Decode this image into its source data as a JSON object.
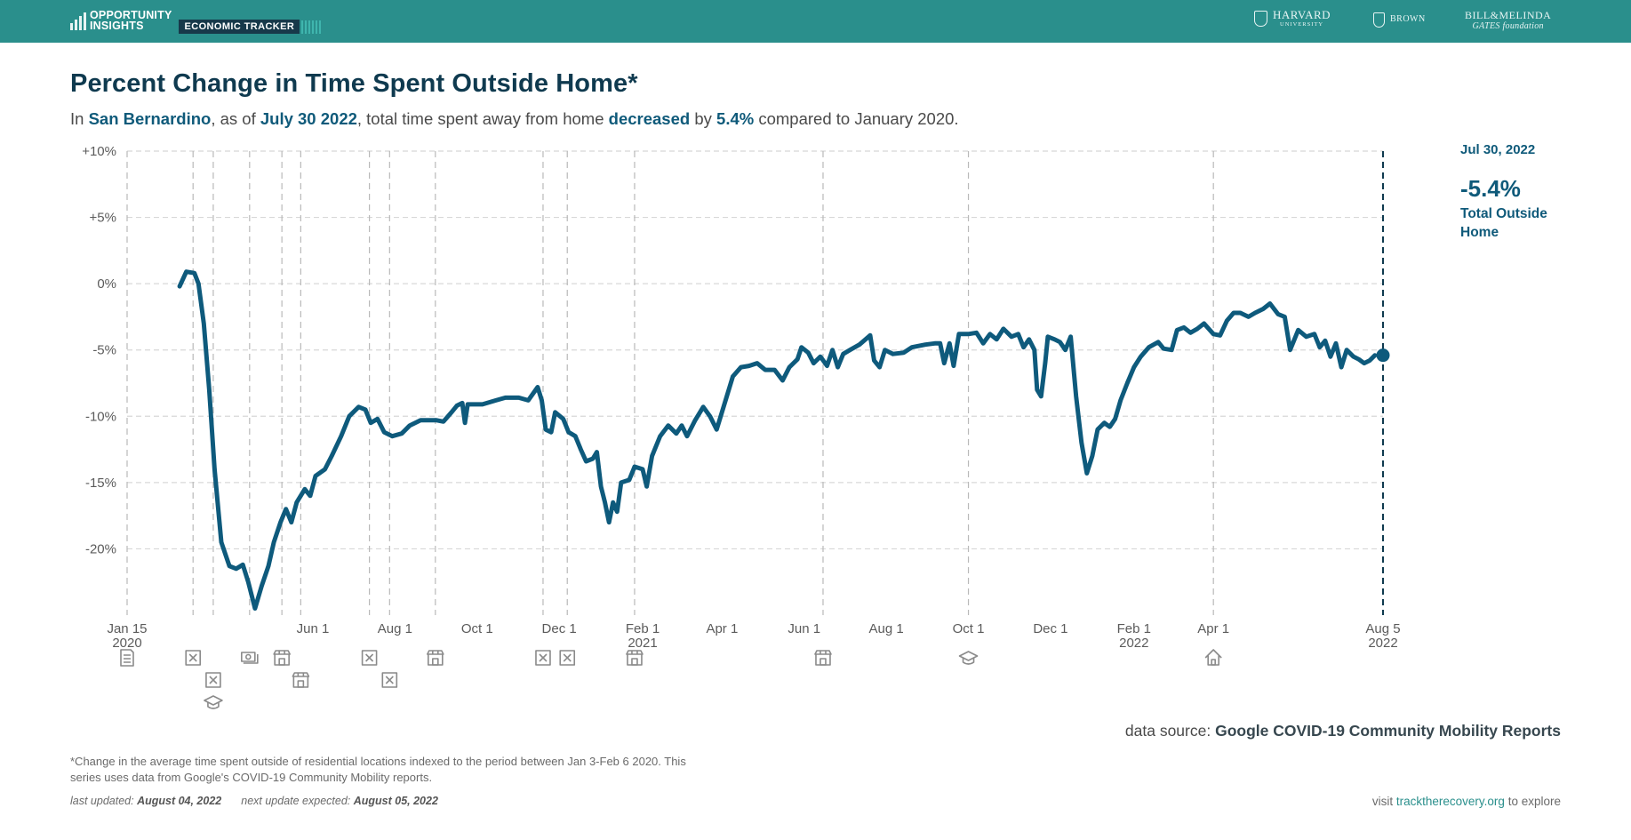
{
  "header": {
    "brand_line1": "OPPORTUNITY",
    "brand_line2": "INSIGHTS",
    "product_tag": "ECONOMIC TRACKER",
    "partners": [
      {
        "name": "HARVARD",
        "sub": "UNIVERSITY"
      },
      {
        "name": "BROWN"
      },
      {
        "name": "BILL&MELINDA",
        "sub": "GATES foundation"
      }
    ]
  },
  "title": "Percent Change in Time Spent Outside Home*",
  "subtitle": {
    "p1": "In ",
    "place": "San Bernardino",
    "p2": ", as of ",
    "date": "July 30 2022",
    "p3": ", total time spent away from home ",
    "direction": "decreased",
    "p4": " by ",
    "amount": "5.4%",
    "p5": " compared to January 2020."
  },
  "readout": {
    "date": "Jul 30, 2022",
    "value": "-5.4%",
    "label": "Total Outside Home"
  },
  "chart_data": {
    "type": "line",
    "ylim": [
      -25,
      10
    ],
    "y_ticks": [
      {
        "value": 10,
        "label": "+10%"
      },
      {
        "value": 5,
        "label": "+5%"
      },
      {
        "value": 0,
        "label": "0%"
      },
      {
        "value": -5,
        "label": "-5%"
      },
      {
        "value": -10,
        "label": "-10%"
      },
      {
        "value": -15,
        "label": "-15%"
      },
      {
        "value": -20,
        "label": "-20%"
      }
    ],
    "x_range": [
      "2020-01-15",
      "2022-08-05"
    ],
    "x_ticks": [
      {
        "date": "2020-01-15",
        "label": "Jan 15",
        "year": "2020"
      },
      {
        "date": "2020-06-01",
        "label": "Jun 1"
      },
      {
        "date": "2020-08-01",
        "label": "Aug 1"
      },
      {
        "date": "2020-10-01",
        "label": "Oct 1"
      },
      {
        "date": "2020-12-01",
        "label": "Dec 1"
      },
      {
        "date": "2021-02-01",
        "label": "Feb 1",
        "year": "2021"
      },
      {
        "date": "2021-04-01",
        "label": "Apr 1"
      },
      {
        "date": "2021-06-01",
        "label": "Jun 1"
      },
      {
        "date": "2021-08-01",
        "label": "Aug 1"
      },
      {
        "date": "2021-10-01",
        "label": "Oct 1"
      },
      {
        "date": "2021-12-01",
        "label": "Dec 1"
      },
      {
        "date": "2022-02-01",
        "label": "Feb 1",
        "year": "2022"
      },
      {
        "date": "2022-04-01",
        "label": "Apr 1"
      },
      {
        "date": "2022-08-05",
        "label": "Aug 5",
        "year": "2022"
      }
    ],
    "grid": "horizontal dashed",
    "series": [
      {
        "color": "#0e5a7c",
        "points": [
          [
            "2020-02-23",
            -0.2
          ],
          [
            "2020-02-28",
            0.9
          ],
          [
            "2020-03-05",
            0.8
          ],
          [
            "2020-03-08",
            0.0
          ],
          [
            "2020-03-12",
            -3.0
          ],
          [
            "2020-03-16",
            -8.0
          ],
          [
            "2020-03-20",
            -14.0
          ],
          [
            "2020-03-25",
            -19.5
          ],
          [
            "2020-03-31",
            -21.3
          ],
          [
            "2020-04-05",
            -21.5
          ],
          [
            "2020-04-10",
            -21.2
          ],
          [
            "2020-04-14",
            -22.5
          ],
          [
            "2020-04-19",
            -24.5
          ],
          [
            "2020-04-24",
            -22.8
          ],
          [
            "2020-04-29",
            -21.3
          ],
          [
            "2020-05-03",
            -19.5
          ],
          [
            "2020-05-08",
            -18.0
          ],
          [
            "2020-05-12",
            -17.0
          ],
          [
            "2020-05-16",
            -18.0
          ],
          [
            "2020-05-20",
            -16.5
          ],
          [
            "2020-05-26",
            -15.5
          ],
          [
            "2020-05-30",
            -16.0
          ],
          [
            "2020-06-03",
            -14.5
          ],
          [
            "2020-06-10",
            -14.0
          ],
          [
            "2020-06-15",
            -13.0
          ],
          [
            "2020-06-22",
            -11.5
          ],
          [
            "2020-06-28",
            -10.0
          ],
          [
            "2020-07-05",
            -9.3
          ],
          [
            "2020-07-10",
            -9.5
          ],
          [
            "2020-07-14",
            -10.5
          ],
          [
            "2020-07-19",
            -10.2
          ],
          [
            "2020-07-24",
            -11.2
          ],
          [
            "2020-07-30",
            -11.5
          ],
          [
            "2020-08-06",
            -11.3
          ],
          [
            "2020-08-12",
            -10.7
          ],
          [
            "2020-08-20",
            -10.3
          ],
          [
            "2020-09-01",
            -10.3
          ],
          [
            "2020-09-06",
            -10.4
          ],
          [
            "2020-09-12",
            -9.7
          ],
          [
            "2020-09-16",
            -9.2
          ],
          [
            "2020-09-20",
            -9.0
          ],
          [
            "2020-09-22",
            -10.5
          ],
          [
            "2020-09-24",
            -9.1
          ],
          [
            "2020-10-05",
            -9.1
          ],
          [
            "2020-10-15",
            -8.8
          ],
          [
            "2020-10-22",
            -8.6
          ],
          [
            "2020-11-01",
            -8.6
          ],
          [
            "2020-11-08",
            -8.8
          ],
          [
            "2020-11-15",
            -7.8
          ],
          [
            "2020-11-18",
            -8.8
          ],
          [
            "2020-11-21",
            -11.0
          ],
          [
            "2020-11-25",
            -11.2
          ],
          [
            "2020-11-28",
            -9.7
          ],
          [
            "2020-12-04",
            -10.2
          ],
          [
            "2020-12-08",
            -11.2
          ],
          [
            "2020-12-13",
            -11.5
          ],
          [
            "2020-12-17",
            -12.5
          ],
          [
            "2020-12-21",
            -13.4
          ],
          [
            "2020-12-26",
            -13.2
          ],
          [
            "2020-12-29",
            -12.7
          ],
          [
            "2021-01-01",
            -15.3
          ],
          [
            "2021-01-04",
            -16.5
          ],
          [
            "2021-01-07",
            -18.0
          ],
          [
            "2021-01-10",
            -16.5
          ],
          [
            "2021-01-13",
            -17.2
          ],
          [
            "2021-01-16",
            -15.0
          ],
          [
            "2021-01-22",
            -14.8
          ],
          [
            "2021-01-26",
            -13.8
          ],
          [
            "2021-02-01",
            -14.0
          ],
          [
            "2021-02-04",
            -15.3
          ],
          [
            "2021-02-08",
            -13.0
          ],
          [
            "2021-02-14",
            -11.5
          ],
          [
            "2021-02-20",
            -10.7
          ],
          [
            "2021-02-26",
            -11.3
          ],
          [
            "2021-03-02",
            -10.7
          ],
          [
            "2021-03-06",
            -11.5
          ],
          [
            "2021-03-12",
            -10.3
          ],
          [
            "2021-03-18",
            -9.3
          ],
          [
            "2021-03-23",
            -10.0
          ],
          [
            "2021-03-28",
            -11.0
          ],
          [
            "2021-04-03",
            -9.0
          ],
          [
            "2021-04-09",
            -7.0
          ],
          [
            "2021-04-15",
            -6.3
          ],
          [
            "2021-04-21",
            -6.2
          ],
          [
            "2021-04-27",
            -6.0
          ],
          [
            "2021-05-03",
            -6.5
          ],
          [
            "2021-05-10",
            -6.5
          ],
          [
            "2021-05-16",
            -7.3
          ],
          [
            "2021-05-21",
            -6.3
          ],
          [
            "2021-05-27",
            -5.7
          ],
          [
            "2021-05-30",
            -4.8
          ],
          [
            "2021-06-04",
            -5.2
          ],
          [
            "2021-06-08",
            -6.0
          ],
          [
            "2021-06-13",
            -5.5
          ],
          [
            "2021-06-18",
            -6.2
          ],
          [
            "2021-06-22",
            -5.0
          ],
          [
            "2021-06-26",
            -6.3
          ],
          [
            "2021-06-30",
            -5.3
          ],
          [
            "2021-07-05",
            -5.0
          ],
          [
            "2021-07-12",
            -4.6
          ],
          [
            "2021-07-20",
            -3.9
          ],
          [
            "2021-07-23",
            -5.8
          ],
          [
            "2021-07-27",
            -6.3
          ],
          [
            "2021-07-31",
            -5.0
          ],
          [
            "2021-08-06",
            -5.3
          ],
          [
            "2021-08-14",
            -5.2
          ],
          [
            "2021-08-20",
            -4.8
          ],
          [
            "2021-08-30",
            -4.6
          ],
          [
            "2021-09-06",
            -4.5
          ],
          [
            "2021-09-10",
            -4.5
          ],
          [
            "2021-09-13",
            -6.0
          ],
          [
            "2021-09-17",
            -4.5
          ],
          [
            "2021-09-20",
            -6.2
          ],
          [
            "2021-09-24",
            -3.8
          ],
          [
            "2021-10-01",
            -3.8
          ],
          [
            "2021-10-07",
            -3.7
          ],
          [
            "2021-10-12",
            -4.5
          ],
          [
            "2021-10-17",
            -3.8
          ],
          [
            "2021-10-22",
            -4.2
          ],
          [
            "2021-10-27",
            -3.4
          ],
          [
            "2021-11-02",
            -4.0
          ],
          [
            "2021-11-07",
            -3.8
          ],
          [
            "2021-11-11",
            -4.8
          ],
          [
            "2021-11-15",
            -4.2
          ],
          [
            "2021-11-19",
            -5.0
          ],
          [
            "2021-11-21",
            -8.0
          ],
          [
            "2021-11-24",
            -8.5
          ],
          [
            "2021-11-27",
            -6.0
          ],
          [
            "2021-11-29",
            -4.0
          ],
          [
            "2021-12-04",
            -4.2
          ],
          [
            "2021-12-08",
            -4.4
          ],
          [
            "2021-12-12",
            -5.0
          ],
          [
            "2021-12-16",
            -4.0
          ],
          [
            "2021-12-20",
            -8.5
          ],
          [
            "2021-12-24",
            -12.0
          ],
          [
            "2021-12-28",
            -14.3
          ],
          [
            "2022-01-01",
            -13.0
          ],
          [
            "2022-01-05",
            -11.0
          ],
          [
            "2022-01-10",
            -10.5
          ],
          [
            "2022-01-14",
            -10.8
          ],
          [
            "2022-01-18",
            -10.2
          ],
          [
            "2022-01-22",
            -8.8
          ],
          [
            "2022-01-27",
            -7.5
          ],
          [
            "2022-02-01",
            -6.3
          ],
          [
            "2022-02-06",
            -5.5
          ],
          [
            "2022-02-12",
            -4.8
          ],
          [
            "2022-02-19",
            -4.4
          ],
          [
            "2022-02-23",
            -4.9
          ],
          [
            "2022-03-01",
            -5.0
          ],
          [
            "2022-03-05",
            -3.5
          ],
          [
            "2022-03-10",
            -3.3
          ],
          [
            "2022-03-15",
            -3.7
          ],
          [
            "2022-03-20",
            -3.4
          ],
          [
            "2022-03-25",
            -3.0
          ],
          [
            "2022-04-01",
            -3.8
          ],
          [
            "2022-04-06",
            -3.9
          ],
          [
            "2022-04-11",
            -2.8
          ],
          [
            "2022-04-16",
            -2.2
          ],
          [
            "2022-04-21",
            -2.2
          ],
          [
            "2022-04-27",
            -2.5
          ],
          [
            "2022-05-02",
            -2.2
          ],
          [
            "2022-05-08",
            -1.9
          ],
          [
            "2022-05-13",
            -1.5
          ],
          [
            "2022-05-19",
            -2.3
          ],
          [
            "2022-05-24",
            -2.5
          ],
          [
            "2022-05-28",
            -5.0
          ],
          [
            "2022-06-03",
            -3.5
          ],
          [
            "2022-06-09",
            -4.0
          ],
          [
            "2022-06-15",
            -3.8
          ],
          [
            "2022-06-19",
            -4.8
          ],
          [
            "2022-06-23",
            -4.3
          ],
          [
            "2022-06-27",
            -5.5
          ],
          [
            "2022-07-01",
            -4.5
          ],
          [
            "2022-07-05",
            -6.3
          ],
          [
            "2022-07-09",
            -5.0
          ],
          [
            "2022-07-14",
            -5.5
          ],
          [
            "2022-07-18",
            -5.7
          ],
          [
            "2022-07-22",
            -6.0
          ],
          [
            "2022-07-26",
            -5.8
          ],
          [
            "2022-07-30",
            -5.4
          ]
        ]
      }
    ],
    "current_marker": {
      "date": "2022-08-05",
      "value": -5.4
    },
    "event_markers": [
      {
        "date": "2020-01-15",
        "icon": "document-icon",
        "row": 0
      },
      {
        "date": "2020-03-04",
        "icon": "closure-x-icon",
        "row": 0
      },
      {
        "date": "2020-03-19",
        "icon": "closure-x-icon",
        "row": 1
      },
      {
        "date": "2020-03-19",
        "icon": "school-cap-icon",
        "row": 2
      },
      {
        "date": "2020-04-15",
        "icon": "stimulus-money-icon",
        "row": 0
      },
      {
        "date": "2020-05-09",
        "icon": "store-icon",
        "row": 0
      },
      {
        "date": "2020-05-23",
        "icon": "store-icon",
        "row": 1
      },
      {
        "date": "2020-07-13",
        "icon": "closure-x-icon",
        "row": 0
      },
      {
        "date": "2020-07-28",
        "icon": "closure-x-icon",
        "row": 1
      },
      {
        "date": "2020-08-31",
        "icon": "store-icon",
        "row": 0
      },
      {
        "date": "2020-11-19",
        "icon": "closure-x-icon",
        "row": 0
      },
      {
        "date": "2020-12-07",
        "icon": "closure-x-icon",
        "row": 0
      },
      {
        "date": "2021-01-26",
        "icon": "store-icon",
        "row": 0
      },
      {
        "date": "2021-06-15",
        "icon": "store-icon",
        "row": 0
      },
      {
        "date": "2021-10-01",
        "icon": "school-cap-icon",
        "row": 0
      },
      {
        "date": "2022-04-01",
        "icon": "house-icon",
        "row": 0
      }
    ]
  },
  "source": {
    "prefix": "data source: ",
    "name": "Google COVID-19 Community Mobility Reports"
  },
  "footnote": "*Change in the average time spent outside of residential locations indexed to the period between Jan 3-Feb 6 2020. This series uses data from Google's COVID-19 Community Mobility reports.",
  "updated": {
    "last_label": "last updated: ",
    "last_date": "August 04, 2022",
    "next_label": "next update expected: ",
    "next_date": "August 05, 2022"
  },
  "visit": {
    "prefix": "visit ",
    "link": "tracktherecovery.org",
    "suffix": " to explore"
  }
}
